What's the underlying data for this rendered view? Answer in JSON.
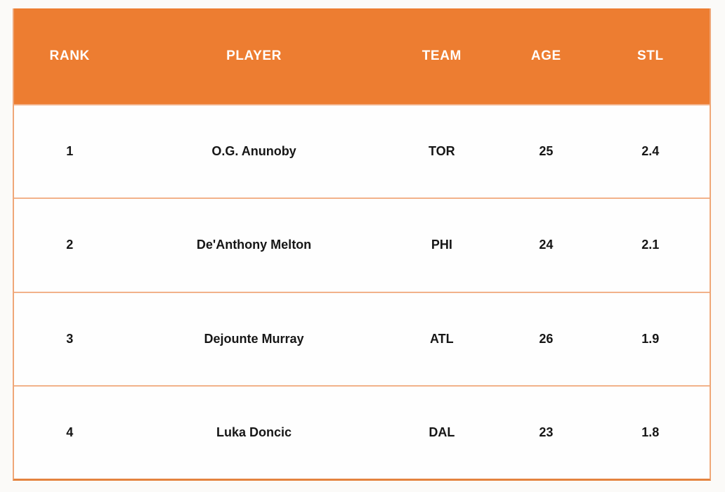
{
  "table": {
    "columns": [
      {
        "key": "rank",
        "label": "RANK"
      },
      {
        "key": "player",
        "label": "PLAYER"
      },
      {
        "key": "team",
        "label": "TEAM"
      },
      {
        "key": "age",
        "label": "AGE"
      },
      {
        "key": "stl",
        "label": "STL"
      }
    ],
    "rows": [
      {
        "rank": "1",
        "player": "O.G. Anunoby",
        "team": "TOR",
        "age": "25",
        "stl": "2.4"
      },
      {
        "rank": "2",
        "player": "De'Anthony Melton",
        "team": "PHI",
        "age": "24",
        "stl": "2.1"
      },
      {
        "rank": "3",
        "player": "Dejounte Murray",
        "team": "ATL",
        "age": "26",
        "stl": "1.9"
      },
      {
        "rank": "4",
        "player": "Luka Doncic",
        "team": "DAL",
        "age": "23",
        "stl": "1.8"
      }
    ],
    "colors": {
      "header_bg": "#ED7D31",
      "header_text": "#FFFFFF",
      "row_bg": "#FEFEFE",
      "inner_border": "#F2B28A",
      "outer_border": "#EFA778",
      "bottom_border": "#E4833F",
      "data_text": "#161616"
    }
  },
  "chart_data": {
    "type": "table",
    "title": "",
    "columns": [
      "RANK",
      "PLAYER",
      "TEAM",
      "AGE",
      "STL"
    ],
    "rows": [
      [
        "1",
        "O.G. Anunoby",
        "TOR",
        "25",
        "2.4"
      ],
      [
        "2",
        "De'Anthony Melton",
        "PHI",
        "24",
        "2.1"
      ],
      [
        "3",
        "Dejounte Murray",
        "ATL",
        "26",
        "1.9"
      ],
      [
        "4",
        "Luka Doncic",
        "DAL",
        "23",
        "1.8"
      ]
    ]
  }
}
